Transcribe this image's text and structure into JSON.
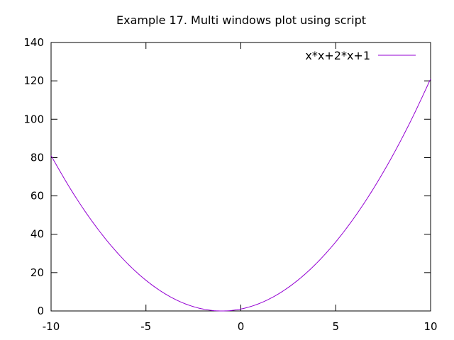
{
  "chart_data": {
    "type": "line",
    "title": "Example 17. Multi windows plot using script",
    "xlabel": "",
    "ylabel": "",
    "xlim": [
      -10,
      10
    ],
    "ylim": [
      0,
      140
    ],
    "x_ticks": [
      "-10",
      "-5",
      "0",
      "5",
      "10"
    ],
    "y_ticks": [
      "0",
      "20",
      "40",
      "60",
      "80",
      "100",
      "120",
      "140"
    ],
    "grid": false,
    "legend_position": "top-right",
    "series": [
      {
        "name": "x*x+2*x+1",
        "color": "#9400d3",
        "x": [
          -10,
          -9,
          -8,
          -7,
          -6,
          -5,
          -4,
          -3,
          -2,
          -1,
          0,
          1,
          2,
          3,
          4,
          5,
          6,
          7,
          8,
          9,
          10
        ],
        "y": [
          81,
          64,
          49,
          36,
          25,
          16,
          9,
          4,
          1,
          0,
          1,
          4,
          9,
          16,
          25,
          36,
          49,
          64,
          81,
          100,
          121
        ]
      }
    ]
  }
}
